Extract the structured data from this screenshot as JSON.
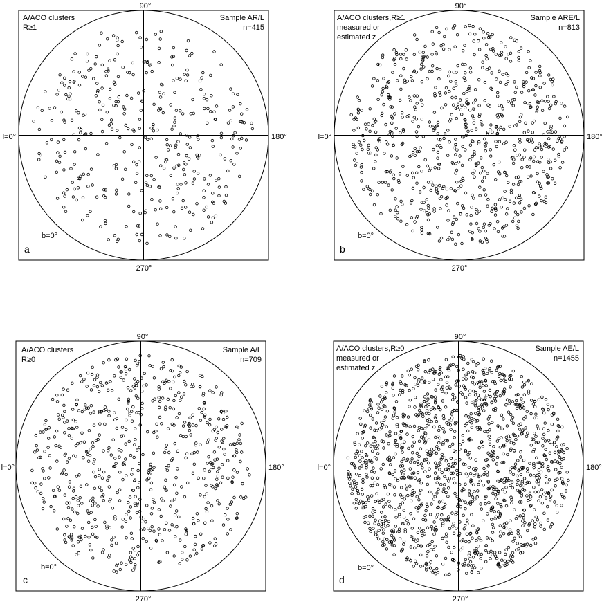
{
  "panels": [
    {
      "letter": "a",
      "heading": [
        "A/ACO clusters",
        "R≥1"
      ],
      "sample": "Sample AR/L",
      "count": "n=415",
      "label_top": "90°",
      "label_right": "180°",
      "label_bottom": "270°",
      "label_left": "l=0°",
      "label_b": "b=0°"
    },
    {
      "letter": "b",
      "heading": [
        "A/ACO clusters,R≥1",
        "measured or",
        "estimated z"
      ],
      "sample": "Sample ARE/L",
      "count": "n=813",
      "label_top": "90°",
      "label_right": "180°",
      "label_bottom": "270°",
      "label_left": "l=0°",
      "label_b": "b=0°"
    },
    {
      "letter": "c",
      "heading": [
        "A/ACO clusters",
        "R≥0"
      ],
      "sample": "Sample A/L",
      "count": "n=709",
      "label_top": "90°",
      "label_right": "180°",
      "label_bottom": "270°",
      "label_left": "l=0°",
      "label_b": "b=0°"
    },
    {
      "letter": "d",
      "heading": [
        "A/ACO clusters,R≥0",
        "measured or",
        "estimated z"
      ],
      "sample": "Sample AE/L",
      "count": "n=1455",
      "label_top": "90°",
      "label_right": "180°",
      "label_bottom": "270°",
      "label_left": "l=0°",
      "label_b": "b=0°"
    }
  ],
  "chart_data": [
    {
      "type": "scatter",
      "projection": "polar equal-area, galactic coordinates",
      "title": "A/ACO clusters R≥1 — Sample AR/L",
      "n": 415,
      "axis_labels": [
        "90°",
        "180°",
        "270°",
        "l=0°",
        "b=0°"
      ],
      "seed": 11,
      "marker": "open circle"
    },
    {
      "type": "scatter",
      "projection": "polar equal-area, galactic coordinates",
      "title": "A/ACO clusters,R≥1 measured or estimated z — Sample ARE/L",
      "n": 813,
      "axis_labels": [
        "90°",
        "180°",
        "270°",
        "l=0°",
        "b=0°"
      ],
      "seed": 23,
      "marker": "open circle"
    },
    {
      "type": "scatter",
      "projection": "polar equal-area, galactic coordinates",
      "title": "A/ACO clusters R≥0 — Sample A/L",
      "n": 709,
      "axis_labels": [
        "90°",
        "180°",
        "270°",
        "l=0°",
        "b=0°"
      ],
      "seed": 37,
      "marker": "open circle"
    },
    {
      "type": "scatter",
      "projection": "polar equal-area, galactic coordinates",
      "title": "A/ACO clusters,R≥0 measured or estimated z — Sample AE/L",
      "n": 1455,
      "axis_labels": [
        "90°",
        "180°",
        "270°",
        "l=0°",
        "b=0°"
      ],
      "seed": 53,
      "marker": "open circle"
    }
  ]
}
